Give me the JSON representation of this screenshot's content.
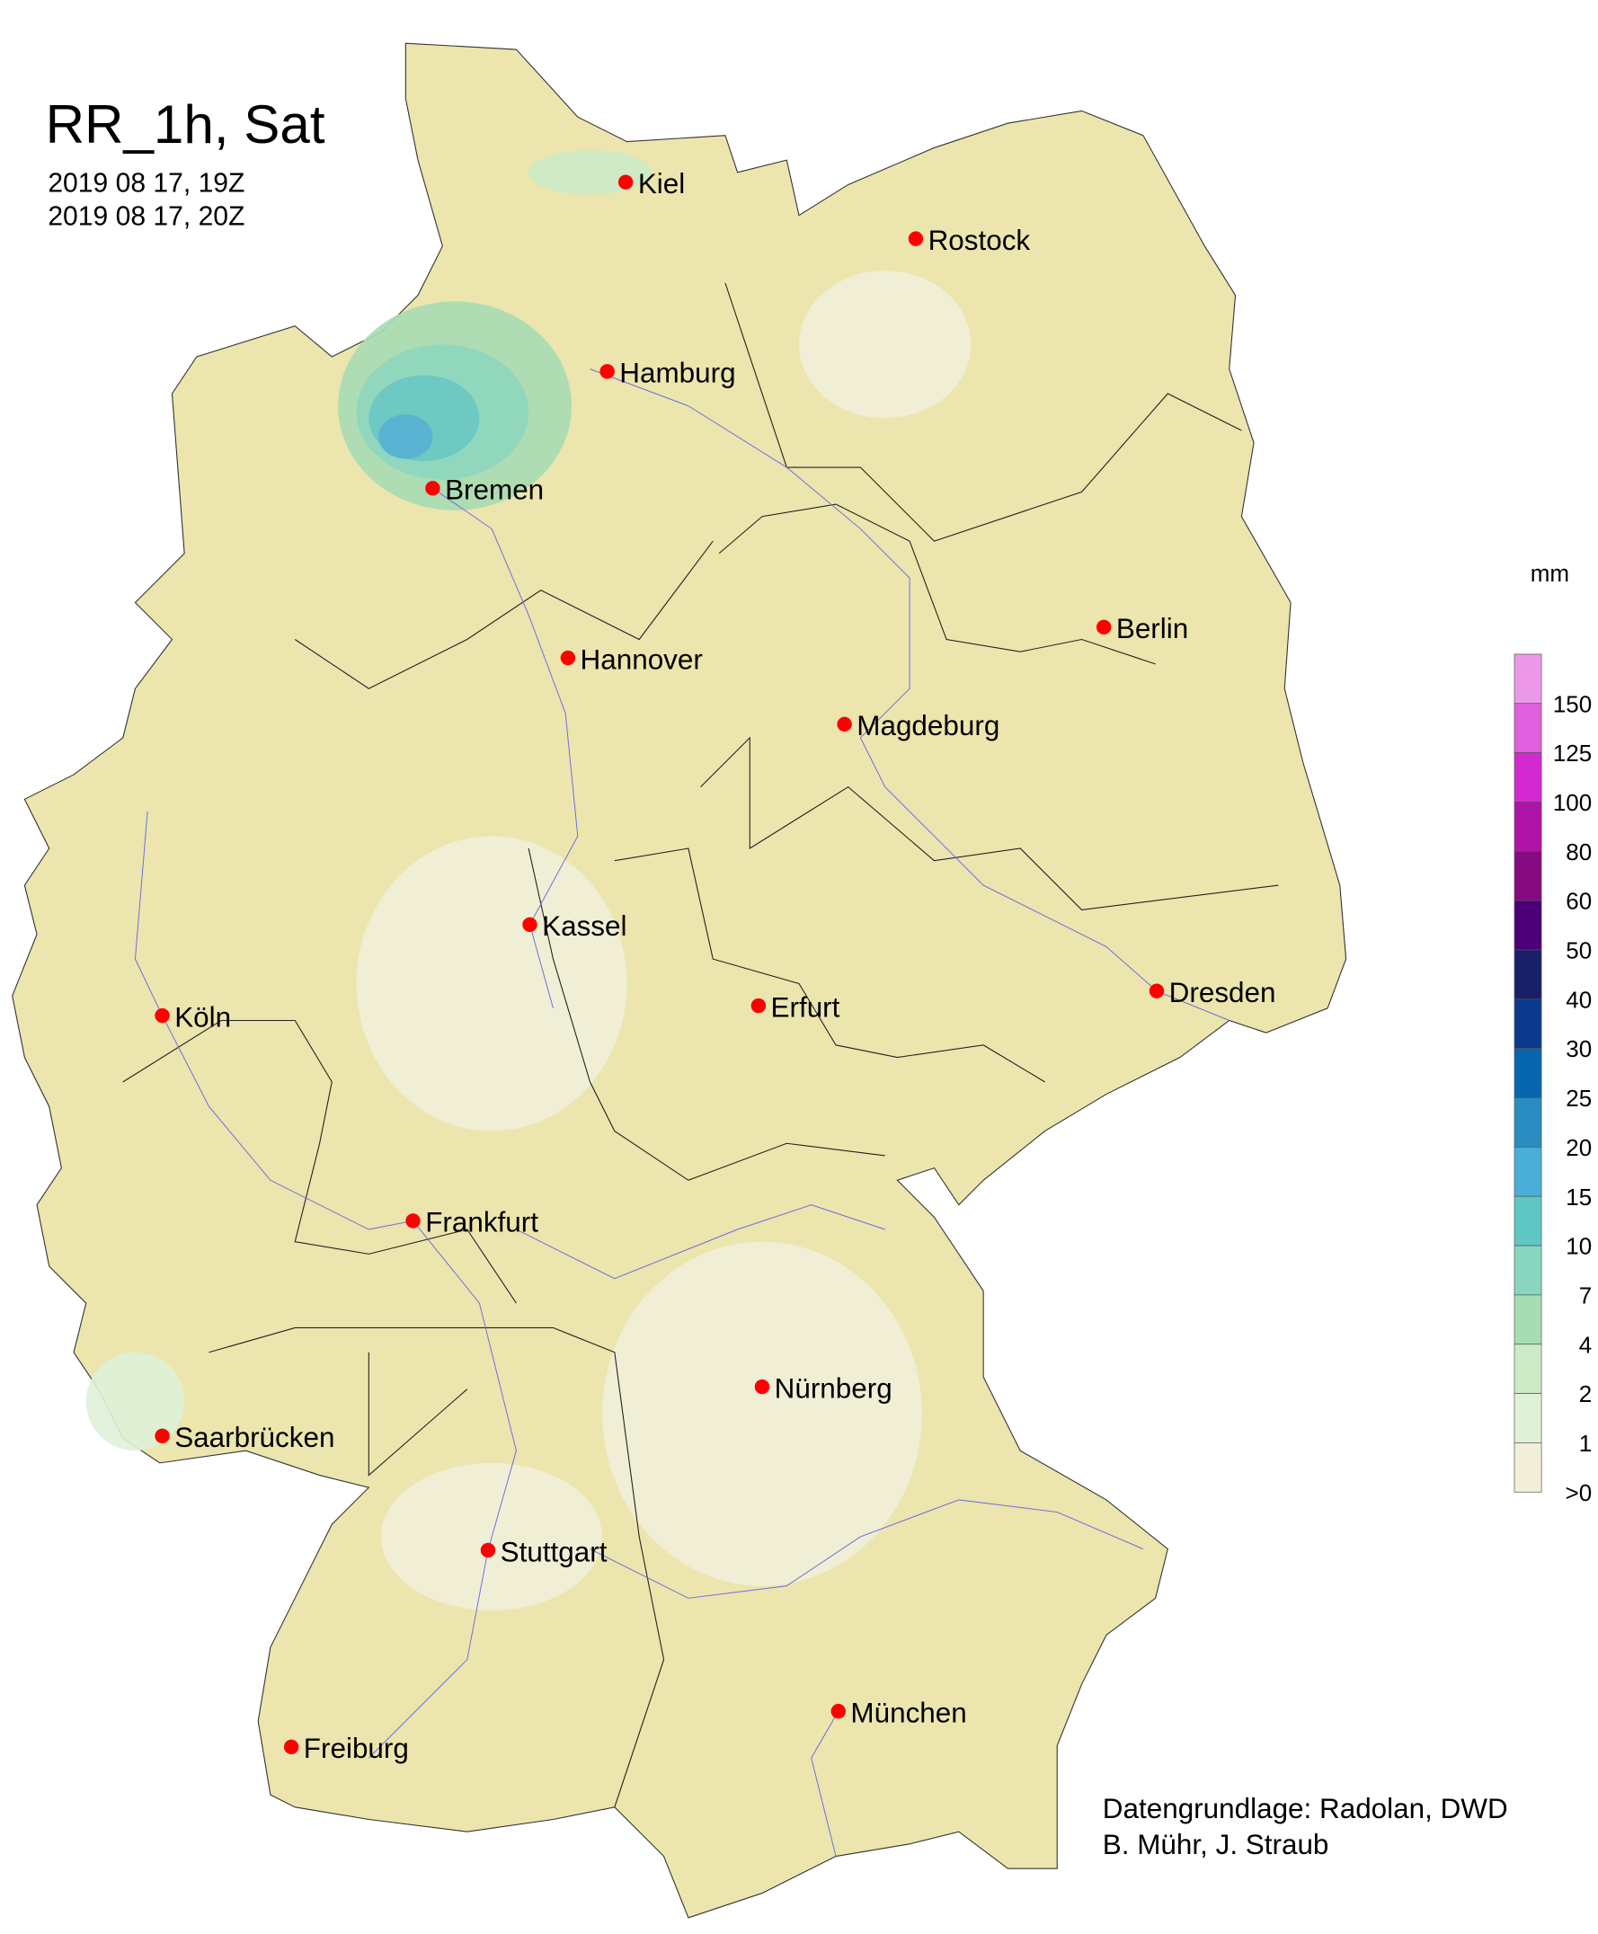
{
  "title": "RR_1h, Sat",
  "time_start": "2019 08 17, 19Z",
  "time_end": "2019 08 17, 20Z",
  "legend": {
    "unit": "mm",
    "labels": [
      "150",
      "125",
      "100",
      "80",
      "60",
      "50",
      "40",
      "30",
      "25",
      "20",
      "15",
      "10",
      "7",
      "4",
      "2",
      "1",
      ">0"
    ],
    "colors": [
      "#ec98e8",
      "#e060de",
      "#d22ad0",
      "#ae14a8",
      "#860a80",
      "#4c0077",
      "#1a1f6a",
      "#0b3a8c",
      "#0866ac",
      "#2a8cc0",
      "#4aaed6",
      "#60c6c4",
      "#88d6c0",
      "#a8dcb4",
      "#cceac6",
      "#dff1d8",
      "#f1efd9"
    ]
  },
  "land_color": "#ece5ae",
  "cities": [
    {
      "name": "Kiel"
    },
    {
      "name": "Rostock"
    },
    {
      "name": "Hamburg"
    },
    {
      "name": "Bremen"
    },
    {
      "name": "Berlin"
    },
    {
      "name": "Hannover"
    },
    {
      "name": "Magdeburg"
    },
    {
      "name": "Kassel"
    },
    {
      "name": "Köln"
    },
    {
      "name": "Erfurt"
    },
    {
      "name": "Dresden"
    },
    {
      "name": "Frankfurt"
    },
    {
      "name": "Nürnberg"
    },
    {
      "name": "Saarbrücken"
    },
    {
      "name": "Stuttgart"
    },
    {
      "name": "München"
    },
    {
      "name": "Freiburg"
    }
  ],
  "credits": {
    "line1": "Datengrundlage: Radolan, DWD",
    "line2": "B. Mühr, J. Straub"
  }
}
